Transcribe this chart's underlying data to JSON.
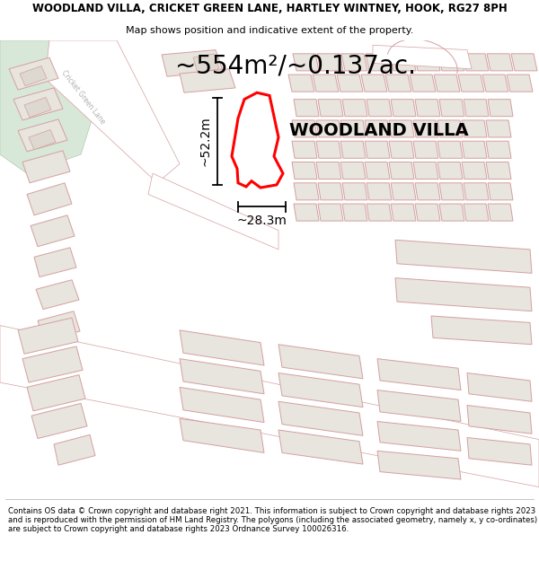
{
  "title_line1": "WOODLAND VILLA, CRICKET GREEN LANE, HARTLEY WINTNEY, HOOK, RG27 8PH",
  "title_line2": "Map shows position and indicative extent of the property.",
  "area_text": "~554m²/~0.137ac.",
  "dim_height": "~52.2m",
  "dim_width": "~28.3m",
  "property_label": "WOODLAND VILLA",
  "footer_text": "Contains OS data © Crown copyright and database right 2021. This information is subject to Crown copyright and database rights 2023 and is reproduced with the permission of HM Land Registry. The polygons (including the associated geometry, namely x, y co-ordinates) are subject to Crown copyright and database rights 2023 Ordnance Survey 100026316.",
  "bg_map_color": "#f5f5f2",
  "highlight_color": "#ff0000",
  "building_fc": "#e8e4de",
  "building_ec": "#d4a0a0",
  "green_color": "#dce8dc",
  "fig_width": 6.0,
  "fig_height": 6.25,
  "title_fontsize": 8.5,
  "subtitle_fontsize": 8.0,
  "area_fontsize": 20,
  "label_fontsize": 14,
  "dim_fontsize": 10,
  "footer_fontsize": 6.2
}
